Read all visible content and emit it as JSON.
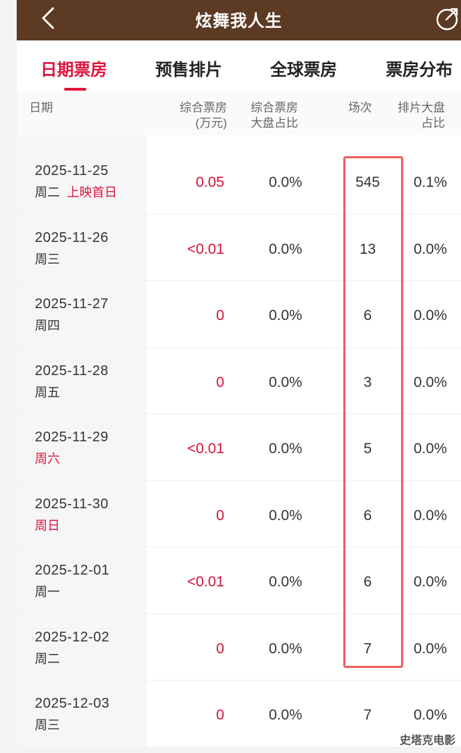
{
  "header": {
    "title": "炫舞我人生"
  },
  "tabs": [
    "日期票房",
    "预售排片",
    "全球票房",
    "票房分布"
  ],
  "columns": {
    "date": "日期",
    "box_office_line1": "综合票房",
    "box_office_line2": "(万元)",
    "share_line1": "综合票房",
    "share_line2": "大盘占比",
    "shows": "场次",
    "schedule_line1": "排片大盘",
    "schedule_line2": "占比"
  },
  "rows": [
    {
      "date": "2025-11-25",
      "weekday": "周二",
      "tag": "上映首日",
      "box_office": "0.05",
      "share": "0.0%",
      "shows": "545",
      "schedule_share": "0.1%"
    },
    {
      "date": "2025-11-26",
      "weekday": "周三",
      "tag": "",
      "box_office": "<0.01",
      "share": "0.0%",
      "shows": "13",
      "schedule_share": "0.0%"
    },
    {
      "date": "2025-11-27",
      "weekday": "周四",
      "tag": "",
      "box_office": "0",
      "share": "0.0%",
      "shows": "6",
      "schedule_share": "0.0%"
    },
    {
      "date": "2025-11-28",
      "weekday": "周五",
      "tag": "",
      "box_office": "0",
      "share": "0.0%",
      "shows": "3",
      "schedule_share": "0.0%"
    },
    {
      "date": "2025-11-29",
      "weekday": "周六",
      "tag": "",
      "box_office": "<0.01",
      "share": "0.0%",
      "shows": "5",
      "schedule_share": "0.0%"
    },
    {
      "date": "2025-11-30",
      "weekday": "周日",
      "tag": "",
      "box_office": "0",
      "share": "0.0%",
      "shows": "6",
      "schedule_share": "0.0%"
    },
    {
      "date": "2025-12-01",
      "weekday": "周一",
      "tag": "",
      "box_office": "<0.01",
      "share": "0.0%",
      "shows": "6",
      "schedule_share": "0.0%"
    },
    {
      "date": "2025-12-02",
      "weekday": "周二",
      "tag": "",
      "box_office": "0",
      "share": "0.0%",
      "shows": "7",
      "schedule_share": "0.0%"
    },
    {
      "date": "2025-12-03",
      "weekday": "周三",
      "tag": "",
      "box_office": "0",
      "share": "0.0%",
      "shows": "7",
      "schedule_share": "0.0%"
    }
  ],
  "watermark": "史塔克电影",
  "colors": {
    "topbar": "#5d3a24",
    "accent": "#e0143c",
    "highlight": "#f25d5d"
  },
  "icons": {
    "back": "chevron-left-icon",
    "share": "share-icon"
  }
}
